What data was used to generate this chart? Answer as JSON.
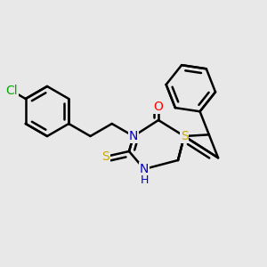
{
  "background_color": "#e8e8e8",
  "bond_color": "#000000",
  "bond_width": 1.8,
  "atom_colors": {
    "N": "#0000cc",
    "O": "#ff0000",
    "S_ring": "#ccaa00",
    "S_thio": "#ccaa00",
    "Cl": "#00aa00",
    "H": "#0000cc"
  },
  "font_size": 10,
  "figsize": [
    3.0,
    3.0
  ],
  "dpi": 100
}
